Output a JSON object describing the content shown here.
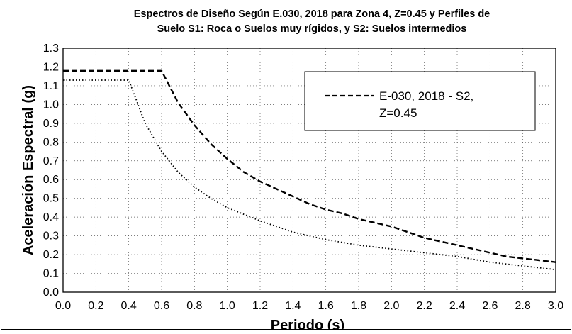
{
  "chart_data": {
    "type": "line",
    "title": "Espectros de Diseño Según E.030, 2018 para Zona 4, Z=0.45 y Perfiles de",
    "subtitle": "Suelo S1: Roca o Suelos muy rígidos, y S2: Suelos intermedios",
    "xlabel": "Periodo (s)",
    "ylabel": "Aceleración Espectral (g)",
    "xlim": [
      0.0,
      3.0
    ],
    "ylim": [
      0.0,
      1.3
    ],
    "xticks": [
      "0.0",
      "0.2",
      "0.4",
      "0.6",
      "0.8",
      "1.0",
      "1.2",
      "1.4",
      "1.6",
      "1.8",
      "2.0",
      "2.2",
      "2.4",
      "2.6",
      "2.8",
      "3.0"
    ],
    "yticks": [
      "0.0",
      "0.1",
      "0.2",
      "0.3",
      "0.4",
      "0.5",
      "0.6",
      "0.7",
      "0.8",
      "0.9",
      "1.0",
      "1.1",
      "1.2",
      "1.3"
    ],
    "grid": true,
    "legend_position": "top-right",
    "series": [
      {
        "name": "E-030, 2018 - S2, Z=0.45",
        "style": "dashed",
        "color": "#000000",
        "x": [
          0.0,
          0.6,
          0.7,
          0.8,
          0.9,
          1.0,
          1.1,
          1.2,
          1.3,
          1.4,
          1.5,
          1.6,
          1.7,
          1.8,
          1.9,
          2.0,
          2.1,
          2.2,
          2.3,
          2.4,
          2.5,
          2.6,
          2.7,
          2.8,
          2.9,
          3.0
        ],
        "y": [
          1.18,
          1.18,
          1.01,
          0.89,
          0.79,
          0.71,
          0.64,
          0.59,
          0.55,
          0.51,
          0.47,
          0.44,
          0.42,
          0.39,
          0.37,
          0.35,
          0.32,
          0.29,
          0.27,
          0.25,
          0.23,
          0.21,
          0.19,
          0.18,
          0.17,
          0.16
        ]
      },
      {
        "name": "",
        "style": "dotted",
        "color": "#000000",
        "x": [
          0.0,
          0.4,
          0.5,
          0.6,
          0.7,
          0.8,
          0.9,
          1.0,
          1.2,
          1.4,
          1.6,
          1.8,
          2.0,
          2.2,
          2.4,
          2.6,
          2.8,
          3.0
        ],
        "y": [
          1.13,
          1.13,
          0.9,
          0.75,
          0.64,
          0.56,
          0.5,
          0.45,
          0.38,
          0.32,
          0.28,
          0.25,
          0.23,
          0.21,
          0.19,
          0.16,
          0.14,
          0.12
        ]
      }
    ],
    "legend": {
      "line1": "E-030, 2018 - S2,",
      "line2": "Z=0.45"
    }
  }
}
